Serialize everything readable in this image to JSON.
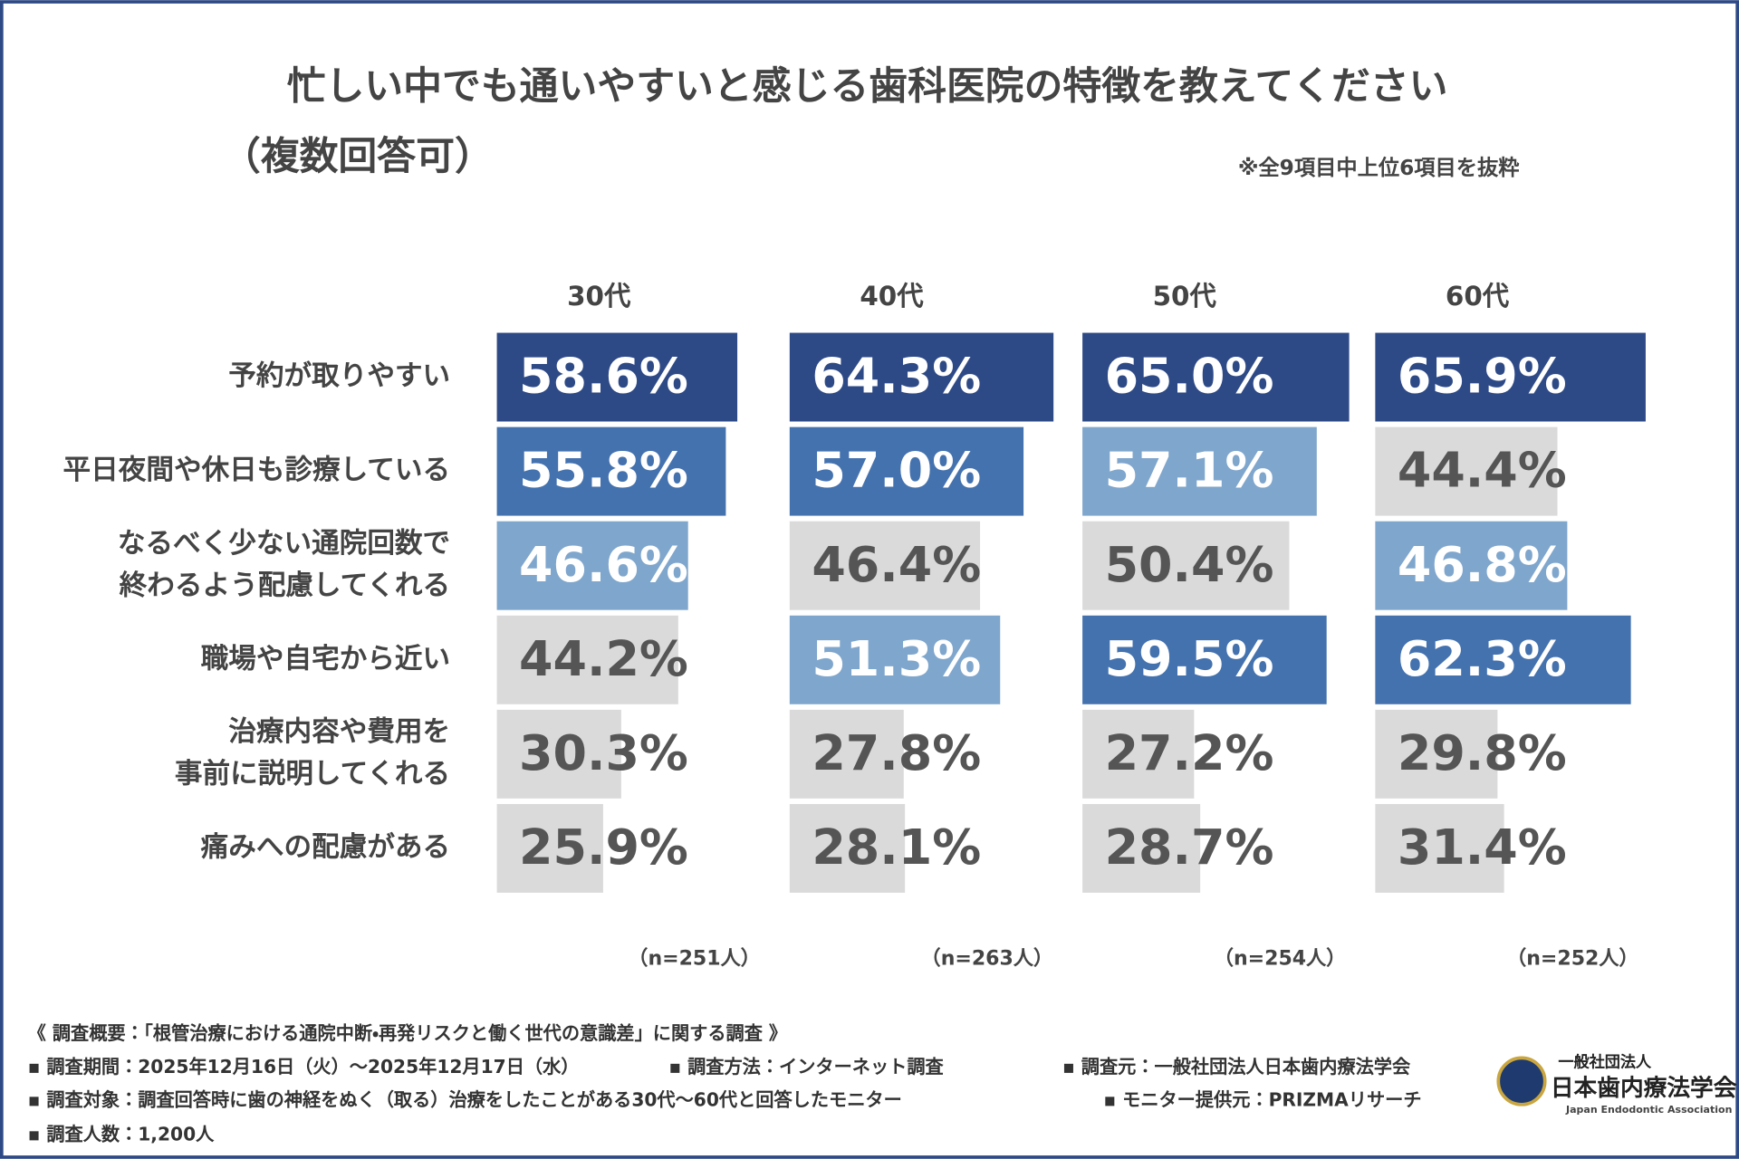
{
  "chart_data": {
    "type": "bar",
    "orientation": "horizontal",
    "title": "忙しい中でも通いやすいと感じる歯科医院の特徴を教えてください",
    "subtitle": "（複数回答可）",
    "note": "※全9項目中上位6項目を抜粋",
    "categories": [
      [
        "予約が取りやすい"
      ],
      [
        "平日夜間や休日も診療している"
      ],
      [
        "なるべく少ない通院回数で",
        "終わるよう配慮してくれる"
      ],
      [
        "職場や自宅から近い"
      ],
      [
        "治療内容や費用を",
        "事前に説明してくれる"
      ],
      [
        "痛みへの配慮がある"
      ]
    ],
    "xlim": [
      0,
      70
    ],
    "series": [
      {
        "name": "30代",
        "sample": "（n=251人）",
        "values": [
          58.6,
          55.8,
          46.6,
          44.2,
          30.3,
          25.9
        ],
        "value_labels": [
          "58.6%",
          "55.8%",
          "46.6%",
          "44.2%",
          "30.3%",
          "25.9%"
        ],
        "colors": [
          "#2e4a86",
          "#4472ae",
          "#7fa6cc",
          "#dadada",
          "#dadada",
          "#dadada"
        ]
      },
      {
        "name": "40代",
        "sample": "（n=263人）",
        "values": [
          64.3,
          57.0,
          46.4,
          51.3,
          27.8,
          28.1
        ],
        "value_labels": [
          "64.3%",
          "57.0%",
          "46.4%",
          "51.3%",
          "27.8%",
          "28.1%"
        ],
        "colors": [
          "#2e4a86",
          "#4472ae",
          "#dadada",
          "#7fa6cc",
          "#dadada",
          "#dadada"
        ]
      },
      {
        "name": "50代",
        "sample": "（n=254人）",
        "values": [
          65.0,
          57.1,
          50.4,
          59.5,
          27.2,
          28.7
        ],
        "value_labels": [
          "65.0%",
          "57.1%",
          "50.4%",
          "59.5%",
          "27.2%",
          "28.7%"
        ],
        "colors": [
          "#2e4a86",
          "#7fa6cc",
          "#dadada",
          "#4472ae",
          "#dadada",
          "#dadada"
        ]
      },
      {
        "name": "60代",
        "sample": "（n=252人）",
        "values": [
          65.9,
          44.4,
          46.8,
          62.3,
          29.8,
          31.4
        ],
        "value_labels": [
          "65.9%",
          "44.4%",
          "46.8%",
          "62.3%",
          "29.8%",
          "31.4%"
        ],
        "colors": [
          "#2e4a86",
          "#dadada",
          "#7fa6cc",
          "#4472ae",
          "#dadada",
          "#dadada"
        ]
      }
    ]
  },
  "footer": {
    "lines": [
      [
        "《 調査概要：「根管治療における通院中断・再発リスクと働く世代の意識差」に関する調査 》"
      ],
      [
        "▪ 調査期間：2025年12月16日（火）～2025年12月17日（水）",
        "▪ 調査方法：インターネット調査",
        "▪ 調査元：一般社団法人日本歯内療法学会"
      ],
      [
        "▪ 調査対象：調査回答時に歯の神経をぬく（取る）治療をしたことがある30代～60代と回答したモニター",
        "▪ モニター提供元：PRIZMAリサーチ"
      ],
      [
        "▪ 調査人数：1,200人"
      ]
    ],
    "logo": {
      "org_type": "一般社団法人",
      "name": "日本歯内療法学会",
      "english": "Japan Endodontic Association"
    }
  }
}
